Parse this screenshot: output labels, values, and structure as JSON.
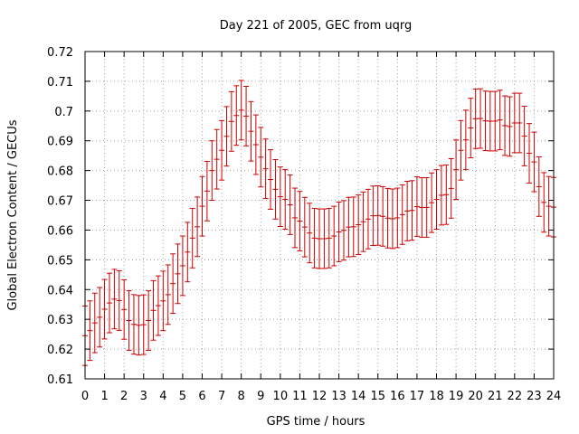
{
  "chart_data": {
    "type": "line",
    "title": "Day 221 of 2005, GEC from uqrg",
    "xlabel": "GPS time / hours",
    "ylabel": "Global Electron Content / GECUs",
    "xlim": [
      0,
      24
    ],
    "ylim": [
      0.61,
      0.72
    ],
    "grid": true,
    "x_ticks": [
      "0",
      "1",
      "2",
      "3",
      "4",
      "5",
      "6",
      "7",
      "8",
      "9",
      "10",
      "11",
      "12",
      "13",
      "14",
      "15",
      "16",
      "17",
      "18",
      "19",
      "20",
      "21",
      "22",
      "23",
      "24"
    ],
    "y_ticks": [
      "0.61",
      "0.62",
      "0.63",
      "0.64",
      "0.65",
      "0.66",
      "0.67",
      "0.68",
      "0.69",
      "0.7",
      "0.71",
      "0.72"
    ],
    "error_half_width": 0.01,
    "colors": {
      "series": "#cc0000",
      "grid": "#a0a0a0",
      "axis": "#000000"
    },
    "series": [
      {
        "x": [
          0.0,
          0.25,
          0.5,
          0.75,
          1.0,
          1.25,
          1.5,
          1.75,
          2.0,
          2.25,
          2.5,
          2.75,
          3.0,
          3.25,
          3.5,
          3.75,
          4.0,
          4.25,
          4.5,
          4.75,
          5.0,
          5.25,
          5.5,
          5.75,
          6.0,
          6.25,
          6.5,
          6.75,
          7.0,
          7.25,
          7.5,
          7.75,
          8.0,
          8.25,
          8.5,
          8.75,
          9.0,
          9.25,
          9.5,
          9.75,
          10.0,
          10.25,
          10.5,
          10.75,
          11.0,
          11.25,
          11.5,
          11.75,
          12.0,
          12.25,
          12.5,
          12.75,
          13.0,
          13.25,
          13.5,
          13.75,
          14.0,
          14.25,
          14.5,
          14.75,
          15.0,
          15.25,
          15.5,
          15.75,
          16.0,
          16.25,
          16.5,
          16.75,
          17.0,
          17.25,
          17.5,
          17.75,
          18.0,
          18.25,
          18.5,
          18.75,
          19.0,
          19.25,
          19.5,
          19.75,
          20.0,
          20.25,
          20.5,
          20.75,
          21.0,
          21.25,
          21.5,
          21.75,
          22.0,
          22.25,
          22.5,
          22.75,
          23.0,
          23.25,
          23.5,
          23.75,
          24.0
        ],
        "y": [
          0.6245,
          0.6262,
          0.6288,
          0.6307,
          0.6334,
          0.6355,
          0.6368,
          0.6363,
          0.6333,
          0.6296,
          0.6283,
          0.628,
          0.6282,
          0.6296,
          0.633,
          0.6346,
          0.6362,
          0.6383,
          0.642,
          0.6453,
          0.648,
          0.6526,
          0.6573,
          0.6611,
          0.668,
          0.6731,
          0.68,
          0.6838,
          0.6868,
          0.6915,
          0.6965,
          0.6985,
          0.7003,
          0.6983,
          0.6932,
          0.6887,
          0.6845,
          0.6806,
          0.677,
          0.6737,
          0.6712,
          0.6703,
          0.6685,
          0.6641,
          0.663,
          0.661,
          0.659,
          0.6573,
          0.6571,
          0.6571,
          0.6573,
          0.658,
          0.6594,
          0.6599,
          0.661,
          0.6611,
          0.6618,
          0.6628,
          0.6637,
          0.6648,
          0.6649,
          0.6646,
          0.664,
          0.6638,
          0.6641,
          0.6652,
          0.6664,
          0.6666,
          0.6679,
          0.6676,
          0.6676,
          0.6692,
          0.6703,
          0.6717,
          0.6719,
          0.674,
          0.6803,
          0.6868,
          0.6903,
          0.6943,
          0.6974,
          0.6975,
          0.6967,
          0.6966,
          0.6966,
          0.697,
          0.6951,
          0.6948,
          0.696,
          0.696,
          0.6916,
          0.6858,
          0.6829,
          0.6746,
          0.6693,
          0.668,
          0.6677
        ]
      }
    ]
  }
}
